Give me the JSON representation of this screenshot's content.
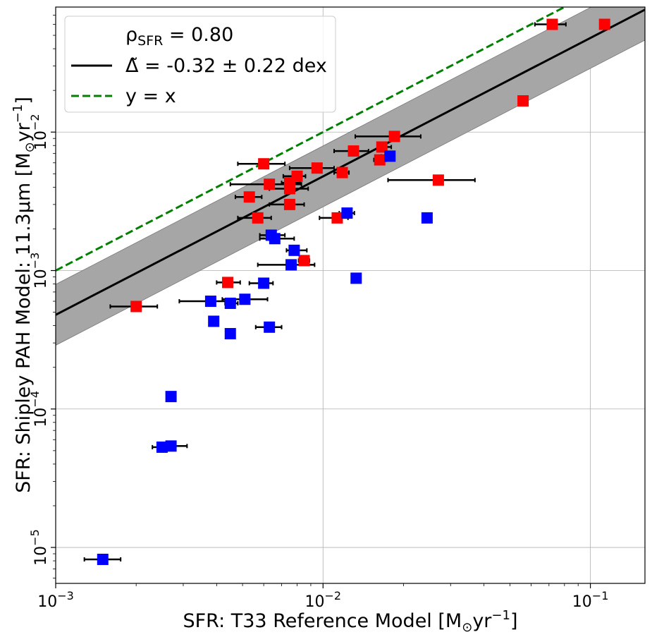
{
  "chart_data": {
    "type": "scatter",
    "scale": "log-log",
    "xlabel_main": "SFR: T33 Reference Model [M",
    "xlabel_sub": "⊙",
    "xlabel_unit": "yr",
    "xlabel_sup": "−1",
    "xlabel_end": "]",
    "ylabel_main": "SFR: Shipley PAH Model: 11.3μm [M",
    "ylabel_sub": "⊙",
    "ylabel_unit": "yr",
    "ylabel_sup": "−1",
    "ylabel_end": "]",
    "xlim": [
      0.001,
      0.16
    ],
    "ylim": [
      5.5e-06,
      0.08
    ],
    "x_ticks": [
      {
        "value": 0.001,
        "base": "10",
        "exp": "−3"
      },
      {
        "value": 0.01,
        "base": "10",
        "exp": "−2"
      },
      {
        "value": 0.1,
        "base": "10",
        "exp": "−1"
      }
    ],
    "y_ticks": [
      {
        "value": 1e-05,
        "base": "10",
        "exp": "−5"
      },
      {
        "value": 0.0001,
        "base": "10",
        "exp": "−4"
      },
      {
        "value": 0.001,
        "base": "10",
        "exp": "−3"
      },
      {
        "value": 0.01,
        "base": "10",
        "exp": "−2"
      }
    ],
    "grid": true,
    "legend": {
      "position": "top-left",
      "entries": [
        {
          "name": "rho",
          "text_main": "ρ",
          "text_sub": "SFR",
          "text_end": " = 0.80"
        },
        {
          "name": "fit",
          "text": "Δ̃ = -0.32 ± 0.22 dex",
          "style": "solid",
          "color": "#000000"
        },
        {
          "name": "identity",
          "text": "y = x",
          "style": "dashed",
          "color": "#008000"
        }
      ]
    },
    "fit_line": {
      "offset_dex": -0.32,
      "scatter_dex": 0.22,
      "color": "#000000",
      "band_color": "#a6a6a6"
    },
    "identity_line": {
      "color": "#008000"
    },
    "series": [
      {
        "name": "red",
        "color": "#ff0000",
        "points": [
          {
            "x": 0.072,
            "y": 0.06,
            "xerr": [
              0.062,
              0.081
            ]
          },
          {
            "x": 0.113,
            "y": 0.06
          },
          {
            "x": 0.056,
            "y": 0.0168
          },
          {
            "x": 0.0185,
            "y": 0.0093,
            "xerr": [
              0.0132,
              0.0232
            ]
          },
          {
            "x": 0.0166,
            "y": 0.0078,
            "xerr": [
              0.016,
              0.018
            ]
          },
          {
            "x": 0.013,
            "y": 0.0073,
            "xerr": [
              0.011,
              0.0148
            ]
          },
          {
            "x": 0.0163,
            "y": 0.0063,
            "xerr": [
              0.0155,
              0.0172
            ]
          },
          {
            "x": 0.006,
            "y": 0.0059,
            "xerr": [
              0.0048,
              0.0072
            ]
          },
          {
            "x": 0.0095,
            "y": 0.0055,
            "xerr": [
              0.0075,
              0.011
            ]
          },
          {
            "x": 0.0118,
            "y": 0.0051,
            "xerr": [
              0.011,
              0.0125
            ]
          },
          {
            "x": 0.008,
            "y": 0.0048,
            "xerr": [
              0.0071,
              0.0086
            ]
          },
          {
            "x": 0.0063,
            "y": 0.0042,
            "xerr": [
              0.0045,
              0.0083
            ]
          },
          {
            "x": 0.0075,
            "y": 0.0043,
            "xerr": [
              0.007,
              0.0082
            ]
          },
          {
            "x": 0.0075,
            "y": 0.0039,
            "xerr": [
              0.0063,
              0.0088
            ]
          },
          {
            "x": 0.0053,
            "y": 0.0034,
            "xerr": [
              0.0047,
              0.0059
            ]
          },
          {
            "x": 0.0075,
            "y": 0.003,
            "xerr": [
              0.0063,
              0.0085
            ]
          },
          {
            "x": 0.0057,
            "y": 0.0024,
            "xerr": [
              0.0048,
              0.0064
            ]
          },
          {
            "x": 0.0113,
            "y": 0.0024,
            "xerr": [
              0.0097,
              0.0124
            ]
          },
          {
            "x": 0.027,
            "y": 0.0045,
            "xerr": [
              0.0175,
              0.037
            ]
          },
          {
            "x": 0.0085,
            "y": 0.00118,
            "xerr": [
              0.0081,
              0.0089
            ]
          },
          {
            "x": 0.0044,
            "y": 0.00082,
            "xerr": [
              0.004,
              0.0049
            ]
          },
          {
            "x": 0.002,
            "y": 0.00055,
            "xerr": [
              0.0016,
              0.0024
            ]
          }
        ]
      },
      {
        "name": "blue",
        "color": "#0000ff",
        "points": [
          {
            "x": 0.0178,
            "y": 0.0067,
            "xerr": [
              0.0165,
              0.0185
            ]
          },
          {
            "x": 0.0123,
            "y": 0.0026,
            "xerr": [
              0.0115,
              0.0131
            ]
          },
          {
            "x": 0.0245,
            "y": 0.0024
          },
          {
            "x": 0.0064,
            "y": 0.0018,
            "xerr": [
              0.0058,
              0.0072
            ]
          },
          {
            "x": 0.0066,
            "y": 0.0017,
            "xerr": [
              0.0058,
              0.0078
            ]
          },
          {
            "x": 0.0078,
            "y": 0.0014,
            "xerr": [
              0.0073,
              0.0087
            ]
          },
          {
            "x": 0.0076,
            "y": 0.0011,
            "xerr": [
              0.0057,
              0.0093
            ]
          },
          {
            "x": 0.0133,
            "y": 0.00088
          },
          {
            "x": 0.006,
            "y": 0.00081,
            "xerr": [
              0.0053,
              0.0065
            ]
          },
          {
            "x": 0.0051,
            "y": 0.00062,
            "xerr": [
              0.0042,
              0.0062
            ]
          },
          {
            "x": 0.0038,
            "y": 0.0006,
            "xerr": [
              0.0029,
              0.0047
            ]
          },
          {
            "x": 0.0045,
            "y": 0.00058,
            "xerr": [
              0.0043,
              0.0048
            ]
          },
          {
            "x": 0.0039,
            "y": 0.00043,
            "xerr": [
              0.0038,
              0.004
            ]
          },
          {
            "x": 0.0063,
            "y": 0.00039,
            "xerr": [
              0.0056,
              0.007
            ]
          },
          {
            "x": 0.0045,
            "y": 0.00035,
            "xerr": [
              0.0044,
              0.0046
            ]
          },
          {
            "x": 0.0027,
            "y": 0.000123,
            "xerr": [
              0.0026,
              0.0028
            ]
          },
          {
            "x": 0.0025,
            "y": 5.3e-05,
            "xerr": [
              0.0023,
              0.0026
            ]
          },
          {
            "x": 0.0027,
            "y": 5.4e-05,
            "xerr": [
              0.0025,
              0.0031
            ]
          },
          {
            "x": 0.0015,
            "y": 8.2e-06,
            "xerr": [
              0.00128,
              0.00175
            ]
          }
        ]
      }
    ]
  }
}
